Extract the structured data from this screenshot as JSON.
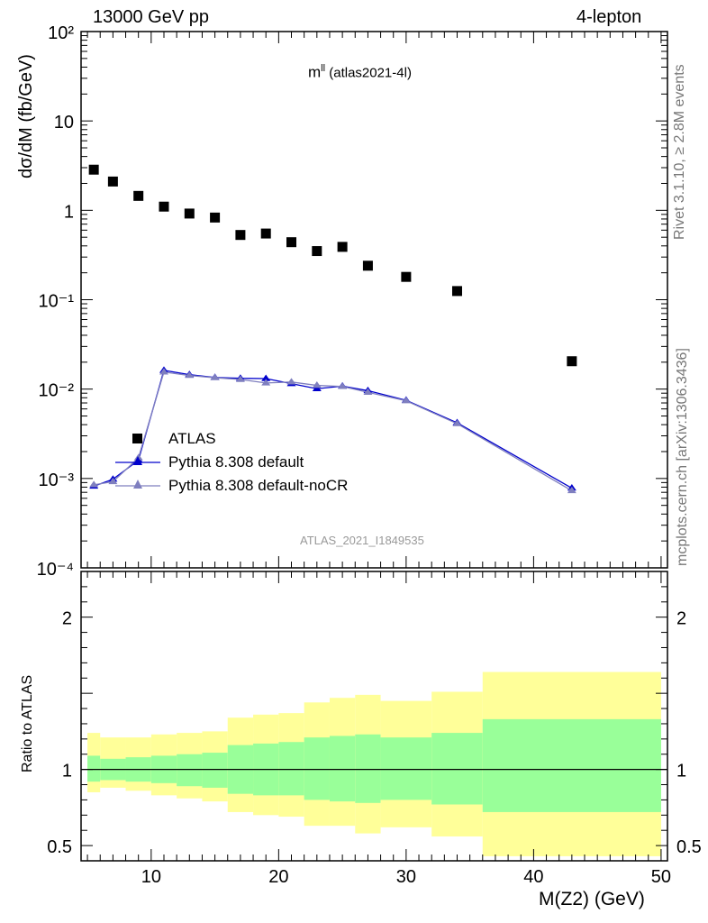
{
  "header": {
    "left": "13000 GeV pp",
    "right": "4-lepton"
  },
  "side_labels": {
    "rivet": "Rivet 3.1.10, ≥ 2.8M events",
    "source": "mcplots.cern.ch [arXiv:1306.3436]"
  },
  "plot_title": {
    "main": "m",
    "sup": "ll",
    "sub": " (atlas2021-4l)"
  },
  "watermark": "ATLAS_2021_I1849535",
  "legend": [
    {
      "label": "ATLAS",
      "marker": "square",
      "color": "#000000"
    },
    {
      "label": "Pythia 8.308 default",
      "marker": "triangle",
      "color": "#0000cc"
    },
    {
      "label": "Pythia 8.308 default-noCR",
      "marker": "triangle",
      "color": "#7f7fbf"
    }
  ],
  "colors": {
    "atlas": "#000000",
    "default": "#0000cc",
    "noCR": "#7f7fbf",
    "band_outer": "#ffff99",
    "band_inner": "#99ff99"
  },
  "chart_data": [
    {
      "type": "scatter",
      "title": "m^ll (atlas2021-4l)",
      "xlabel": "M(Z2) (GeV)",
      "ylabel": "dσ/dM (fb/GeV)",
      "yscale": "log",
      "ylim": [
        0.0001,
        100
      ],
      "xlim": [
        4.5,
        50.5
      ],
      "y_tick_labels": [
        "10⁻⁴",
        "10⁻³",
        "10⁻²",
        "10⁻¹",
        "1",
        "10",
        "10²"
      ],
      "x_ticks": [
        10,
        20,
        30,
        40,
        50
      ],
      "series": [
        {
          "name": "ATLAS",
          "x": [
            5.5,
            7,
            9,
            11,
            13,
            15,
            17,
            19,
            21,
            23,
            25,
            27,
            30,
            34,
            43
          ],
          "xerr": [
            [
              4.5,
              6
            ],
            [
              6,
              8
            ],
            [
              8,
              10
            ],
            [
              10,
              12
            ],
            [
              12,
              14
            ],
            [
              14,
              16
            ],
            [
              16,
              18
            ],
            [
              18,
              20
            ],
            [
              20,
              22
            ],
            [
              22,
              24
            ],
            [
              24,
              26
            ],
            [
              26,
              28
            ],
            [
              28,
              32
            ],
            [
              32,
              36
            ],
            [
              36,
              50
            ]
          ],
          "y": [
            2.85,
            2.1,
            1.45,
            1.1,
            0.92,
            0.83,
            0.53,
            0.55,
            0.44,
            0.35,
            0.39,
            0.24,
            0.18,
            0.125,
            0.0205
          ]
        },
        {
          "name": "Pythia 8.308 default",
          "x": [
            5.5,
            7,
            9,
            11,
            13,
            15,
            17,
            19,
            21,
            23,
            25,
            27,
            30,
            34,
            43
          ],
          "y": [
            0.00082,
            0.00098,
            0.0016,
            0.0162,
            0.0145,
            0.0135,
            0.0132,
            0.0131,
            0.0115,
            0.0101,
            0.0108,
            0.0096,
            0.0075,
            0.0042,
            0.00078
          ]
        },
        {
          "name": "Pythia 8.308 default-noCR",
          "x": [
            5.5,
            7,
            9,
            11,
            13,
            15,
            17,
            19,
            21,
            23,
            25,
            27,
            30,
            34,
            43
          ],
          "y": [
            0.00085,
            0.00092,
            0.0017,
            0.0155,
            0.0142,
            0.0134,
            0.0128,
            0.0117,
            0.012,
            0.011,
            0.0107,
            0.0092,
            0.0074,
            0.0041,
            0.00073
          ]
        }
      ]
    },
    {
      "type": "area",
      "title": "",
      "xlabel": "M(Z2) (GeV)",
      "ylabel": "Ratio to ATLAS",
      "ylim": [
        0.4,
        2.3
      ],
      "y_ticks": [
        0.5,
        1,
        2
      ],
      "y_tick_labels": [
        "0.5",
        "1",
        "2"
      ],
      "reference_line": 1,
      "bins": [
        [
          5,
          6
        ],
        [
          6,
          8
        ],
        [
          8,
          10
        ],
        [
          10,
          12
        ],
        [
          12,
          14
        ],
        [
          14,
          16
        ],
        [
          16,
          18
        ],
        [
          18,
          20
        ],
        [
          20,
          22
        ],
        [
          22,
          24
        ],
        [
          24,
          26
        ],
        [
          26,
          28
        ],
        [
          28,
          32
        ],
        [
          32,
          36
        ],
        [
          36,
          50
        ]
      ],
      "series": [
        {
          "name": "outer",
          "low": [
            0.85,
            0.88,
            0.86,
            0.83,
            0.81,
            0.79,
            0.72,
            0.7,
            0.69,
            0.63,
            0.63,
            0.58,
            0.62,
            0.56,
            0.43
          ],
          "high": [
            1.24,
            1.21,
            1.21,
            1.23,
            1.24,
            1.25,
            1.34,
            1.36,
            1.37,
            1.44,
            1.47,
            1.49,
            1.45,
            1.51,
            1.64
          ]
        },
        {
          "name": "inner",
          "low": [
            0.92,
            0.93,
            0.92,
            0.91,
            0.89,
            0.88,
            0.84,
            0.83,
            0.83,
            0.8,
            0.79,
            0.78,
            0.8,
            0.77,
            0.72
          ],
          "high": [
            1.09,
            1.07,
            1.08,
            1.09,
            1.1,
            1.11,
            1.16,
            1.17,
            1.18,
            1.21,
            1.22,
            1.23,
            1.21,
            1.24,
            1.33
          ]
        }
      ]
    }
  ]
}
